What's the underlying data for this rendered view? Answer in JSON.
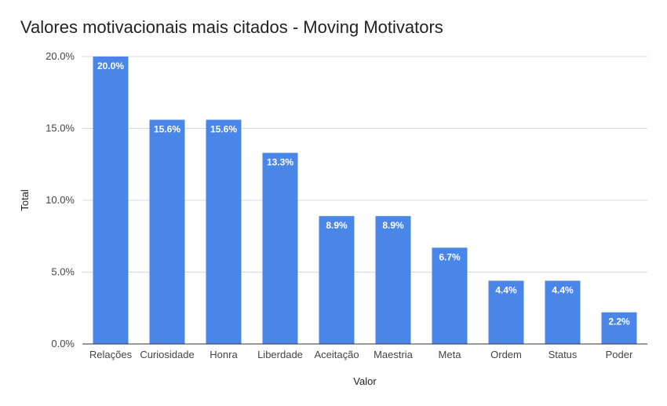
{
  "chart_data": {
    "type": "bar",
    "title": "Valores motivacionais mais citados - Moving Motivators",
    "xlabel": "Valor",
    "ylabel": "Total",
    "categories": [
      "Relações",
      "Curiosidade",
      "Honra",
      "Liberdade",
      "Aceitação",
      "Maestria",
      "Meta",
      "Ordem",
      "Status",
      "Poder"
    ],
    "values": [
      20.0,
      15.6,
      15.6,
      13.3,
      8.9,
      8.9,
      6.7,
      4.4,
      4.4,
      2.2
    ],
    "data_labels": [
      "20.0%",
      "15.6%",
      "15.6%",
      "13.3%",
      "8.9%",
      "8.9%",
      "6.7%",
      "4.4%",
      "4.4%",
      "2.2%"
    ],
    "ylim": [
      0,
      20
    ],
    "yticks": [
      0,
      5,
      10,
      15,
      20
    ],
    "ytick_labels": [
      "0.0%",
      "5.0%",
      "10.0%",
      "15.0%",
      "20.0%"
    ],
    "grid": true,
    "legend": "none",
    "bar_color": "#4a86e8"
  }
}
